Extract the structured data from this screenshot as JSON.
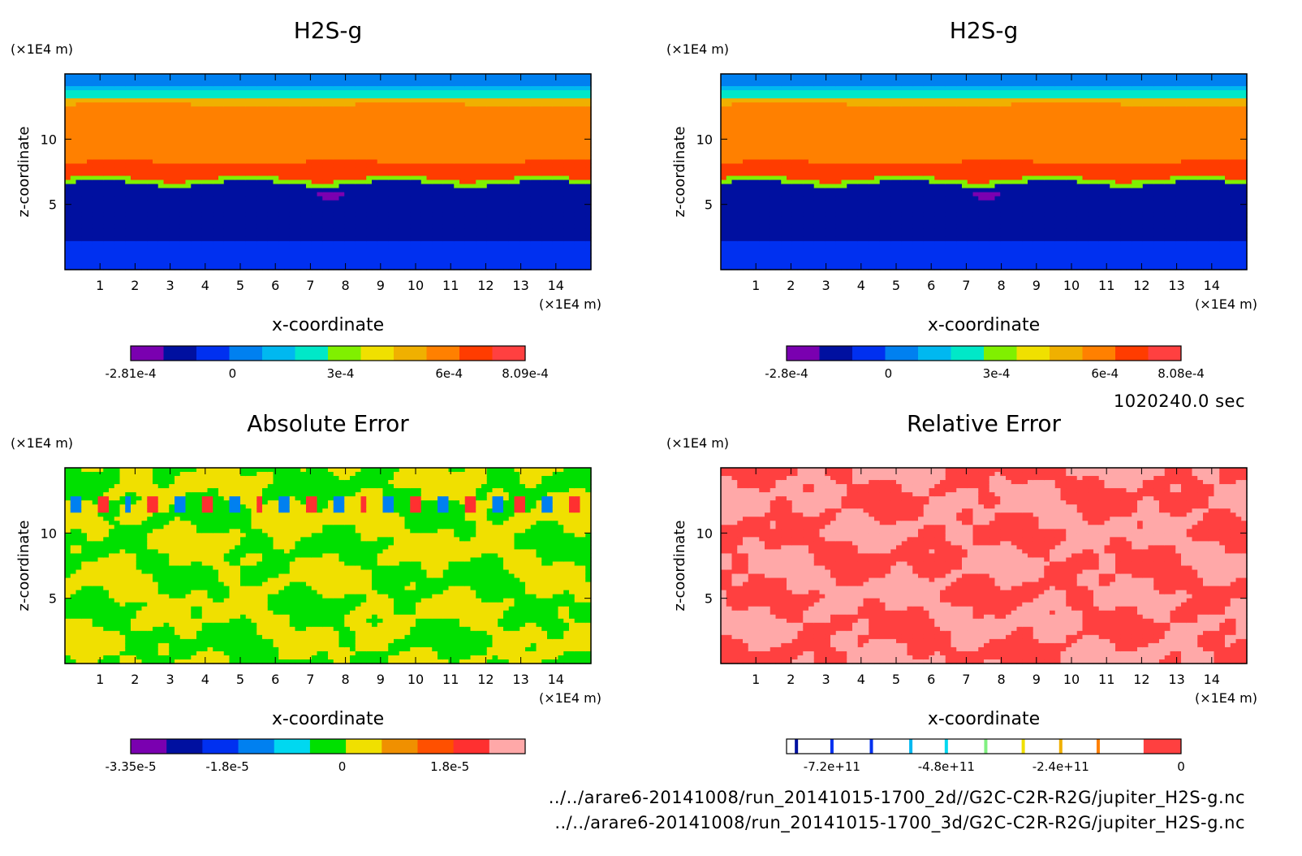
{
  "timestamp": "1020240.0 sec",
  "footer_lines": [
    "../../arare6-20141008/run_20141015-1700_2d//G2C-C2R-R2G/jupiter_H2S-g.nc",
    "../../arare6-20141008/run_20141015-1700_3d/G2C-C2R-R2G/jupiter_H2S-g.nc"
  ],
  "chart_data": [
    {
      "type": "heatmap",
      "title": "H2S-g",
      "xlabel": "x-coordinate",
      "ylabel": "z-coordinate",
      "x_unit": "(x1E4 m)",
      "y_unit": "(x1E4 m)",
      "xlim": [
        0,
        15
      ],
      "ylim": [
        0,
        15
      ],
      "x_ticks": [
        1,
        2,
        3,
        4,
        5,
        6,
        7,
        8,
        9,
        10,
        11,
        12,
        13,
        14
      ],
      "y_ticks": [
        5,
        10
      ],
      "field": "stratified",
      "colorbar": {
        "colors": [
          "#7a00b0",
          "#0010a0",
          "#0030f0",
          "#0080f0",
          "#00b8f0",
          "#00e8c8",
          "#80f000",
          "#f0e000",
          "#f0b000",
          "#ff8000",
          "#ff3c00",
          "#ff4040"
        ],
        "tick_labels": [
          "-2.81e-4",
          "0",
          "3e-4",
          "6e-4",
          "8.09e-4"
        ],
        "tick_positions": [
          0,
          0.258,
          0.532,
          0.807,
          1.0
        ]
      }
    },
    {
      "type": "heatmap",
      "title": "H2S-g",
      "xlabel": "x-coordinate",
      "ylabel": "z-coordinate",
      "x_unit": "(x1E4 m)",
      "y_unit": "(x1E4 m)",
      "xlim": [
        0,
        15
      ],
      "ylim": [
        0,
        15
      ],
      "x_ticks": [
        1,
        2,
        3,
        4,
        5,
        6,
        7,
        8,
        9,
        10,
        11,
        12,
        13,
        14
      ],
      "y_ticks": [
        5,
        10
      ],
      "field": "stratified",
      "colorbar": {
        "colors": [
          "#7a00b0",
          "#0010a0",
          "#0030f0",
          "#0080f0",
          "#00b8f0",
          "#00e8c8",
          "#80f000",
          "#f0e000",
          "#f0b000",
          "#ff8000",
          "#ff3c00",
          "#ff4040"
        ],
        "tick_labels": [
          "-2.8e-4",
          "0",
          "3e-4",
          "6e-4",
          "8.08e-4"
        ],
        "tick_positions": [
          0,
          0.258,
          0.532,
          0.807,
          1.0
        ]
      }
    },
    {
      "type": "heatmap",
      "title": "Absolute Error",
      "xlabel": "x-coordinate",
      "ylabel": "z-coordinate",
      "x_unit": "(x1E4 m)",
      "y_unit": "(x1E4 m)",
      "xlim": [
        0,
        15
      ],
      "ylim": [
        0,
        15
      ],
      "x_ticks": [
        1,
        2,
        3,
        4,
        5,
        6,
        7,
        8,
        9,
        10,
        11,
        12,
        13,
        14
      ],
      "y_ticks": [
        5,
        10
      ],
      "field": "abs_error",
      "colorbar": {
        "colors": [
          "#7a00b0",
          "#0010a0",
          "#0030f0",
          "#0080f0",
          "#00d8f0",
          "#00e000",
          "#f0e000",
          "#f09000",
          "#ff5000",
          "#ff3030",
          "#ffa8a8"
        ],
        "tick_labels": [
          "-3.35e-5",
          "-1.8e-5",
          "0",
          "1.8e-5"
        ],
        "tick_positions": [
          0,
          0.245,
          0.536,
          0.809
        ]
      }
    },
    {
      "type": "heatmap",
      "title": "Relative Error",
      "xlabel": "x-coordinate",
      "ylabel": "z-coordinate",
      "x_unit": "(x1E4 m)",
      "y_unit": "(x1E4 m)",
      "xlim": [
        0,
        15
      ],
      "ylim": [
        0,
        15
      ],
      "x_ticks": [
        1,
        2,
        3,
        4,
        5,
        6,
        7,
        8,
        9,
        10,
        11,
        12,
        13,
        14
      ],
      "y_ticks": [
        5,
        10
      ],
      "field": "rel_error",
      "colorbar": {
        "colors": [
          "#ffffff"
        ],
        "stripes": [
          {
            "pos": 0.025,
            "color": "#0010a0"
          },
          {
            "pos": 0.115,
            "color": "#0030f0"
          },
          {
            "pos": 0.215,
            "color": "#0030f0"
          },
          {
            "pos": 0.315,
            "color": "#00b8f0"
          },
          {
            "pos": 0.405,
            "color": "#00d8f0"
          },
          {
            "pos": 0.505,
            "color": "#80f080"
          },
          {
            "pos": 0.6,
            "color": "#f0e000"
          },
          {
            "pos": 0.695,
            "color": "#f0b000"
          },
          {
            "pos": 0.79,
            "color": "#ff8000"
          }
        ],
        "end_block": {
          "from": 0.905,
          "color": "#ff4040"
        },
        "tick_labels": [
          "-7.2e+11",
          "-4.8e+11",
          "-2.4e+11",
          "0"
        ],
        "tick_positions": [
          0.115,
          0.405,
          0.695,
          1.0
        ]
      }
    }
  ]
}
